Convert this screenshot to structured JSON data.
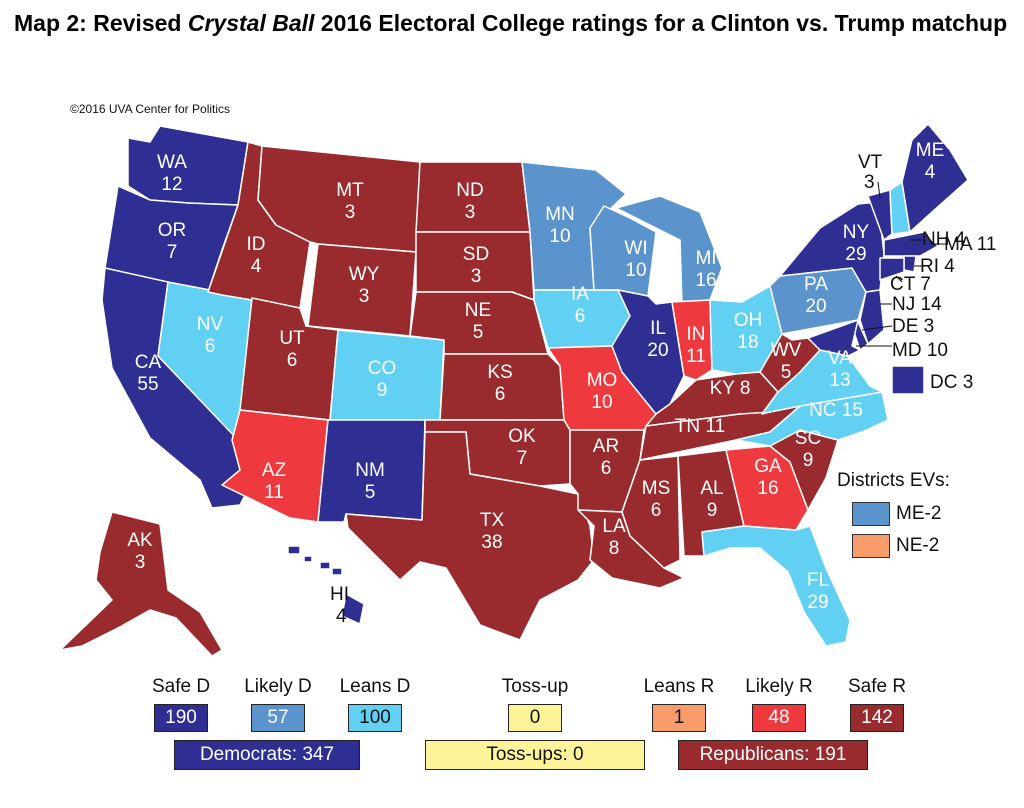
{
  "header": {
    "title_a": "Map 2: Revised ",
    "title_b": "Crystal Ball",
    "title_c": " 2016 Electoral College ratings for a Clinton vs. Trump matchup",
    "copyright": "©2016 UVA Center for Politics"
  },
  "colors": {
    "safe_d": "#2e2e93",
    "likely_d": "#5b93cc",
    "leans_d": "#61d0f2",
    "toss_up": "#fdf49a",
    "leans_r": "#f89c6c",
    "likely_r": "#ee3a3e",
    "safe_r": "#992b2f"
  },
  "states": [
    {
      "abbr": "WA",
      "ev": "12",
      "rating": "safe_d"
    },
    {
      "abbr": "OR",
      "ev": "7",
      "rating": "safe_d"
    },
    {
      "abbr": "CA",
      "ev": "55",
      "rating": "safe_d"
    },
    {
      "abbr": "NV",
      "ev": "6",
      "rating": "leans_d"
    },
    {
      "abbr": "ID",
      "ev": "4",
      "rating": "safe_r"
    },
    {
      "abbr": "MT",
      "ev": "3",
      "rating": "safe_r"
    },
    {
      "abbr": "WY",
      "ev": "3",
      "rating": "safe_r"
    },
    {
      "abbr": "UT",
      "ev": "6",
      "rating": "safe_r"
    },
    {
      "abbr": "CO",
      "ev": "9",
      "rating": "leans_d"
    },
    {
      "abbr": "AZ",
      "ev": "11",
      "rating": "likely_r"
    },
    {
      "abbr": "NM",
      "ev": "5",
      "rating": "safe_d"
    },
    {
      "abbr": "ND",
      "ev": "3",
      "rating": "safe_r"
    },
    {
      "abbr": "SD",
      "ev": "3",
      "rating": "safe_r"
    },
    {
      "abbr": "NE",
      "ev": "5",
      "rating": "safe_r"
    },
    {
      "abbr": "KS",
      "ev": "6",
      "rating": "safe_r"
    },
    {
      "abbr": "OK",
      "ev": "7",
      "rating": "safe_r"
    },
    {
      "abbr": "TX",
      "ev": "38",
      "rating": "safe_r"
    },
    {
      "abbr": "MN",
      "ev": "10",
      "rating": "likely_d"
    },
    {
      "abbr": "IA",
      "ev": "6",
      "rating": "leans_d"
    },
    {
      "abbr": "MO",
      "ev": "10",
      "rating": "likely_r"
    },
    {
      "abbr": "AR",
      "ev": "6",
      "rating": "safe_r"
    },
    {
      "abbr": "LA",
      "ev": "8",
      "rating": "safe_r"
    },
    {
      "abbr": "WI",
      "ev": "10",
      "rating": "likely_d"
    },
    {
      "abbr": "IL",
      "ev": "20",
      "rating": "safe_d"
    },
    {
      "abbr": "MI",
      "ev": "16",
      "rating": "likely_d"
    },
    {
      "abbr": "IN",
      "ev": "11",
      "rating": "likely_r"
    },
    {
      "abbr": "OH",
      "ev": "18",
      "rating": "leans_d"
    },
    {
      "abbr": "KY",
      "ev": "8",
      "rating": "safe_r"
    },
    {
      "abbr": "TN",
      "ev": "11",
      "rating": "safe_r"
    },
    {
      "abbr": "MS",
      "ev": "6",
      "rating": "safe_r"
    },
    {
      "abbr": "AL",
      "ev": "9",
      "rating": "safe_r"
    },
    {
      "abbr": "GA",
      "ev": "16",
      "rating": "likely_r"
    },
    {
      "abbr": "FL",
      "ev": "29",
      "rating": "leans_d"
    },
    {
      "abbr": "SC",
      "ev": "9",
      "rating": "safe_r"
    },
    {
      "abbr": "NC",
      "ev": "15",
      "rating": "leans_d"
    },
    {
      "abbr": "VA",
      "ev": "13",
      "rating": "leans_d"
    },
    {
      "abbr": "WV",
      "ev": "5",
      "rating": "safe_r"
    },
    {
      "abbr": "PA",
      "ev": "20",
      "rating": "likely_d"
    },
    {
      "abbr": "NY",
      "ev": "29",
      "rating": "safe_d"
    },
    {
      "abbr": "VT",
      "ev": "3",
      "rating": "safe_d"
    },
    {
      "abbr": "NH",
      "ev": "4",
      "rating": "leans_d"
    },
    {
      "abbr": "ME",
      "ev": "4",
      "rating": "safe_d"
    },
    {
      "abbr": "MA",
      "ev": "11",
      "rating": "safe_d"
    },
    {
      "abbr": "RI",
      "ev": "4",
      "rating": "safe_d"
    },
    {
      "abbr": "CT",
      "ev": "7",
      "rating": "safe_d"
    },
    {
      "abbr": "NJ",
      "ev": "14",
      "rating": "safe_d"
    },
    {
      "abbr": "DE",
      "ev": "3",
      "rating": "safe_d"
    },
    {
      "abbr": "MD",
      "ev": "10",
      "rating": "safe_d"
    },
    {
      "abbr": "DC",
      "ev": "3",
      "rating": "safe_d"
    },
    {
      "abbr": "AK",
      "ev": "3",
      "rating": "safe_r"
    },
    {
      "abbr": "HI",
      "ev": "4",
      "rating": "safe_d"
    }
  ],
  "districts": {
    "heading": "Districts EVs:",
    "items": [
      {
        "label": "ME-2",
        "rating": "likely_d"
      },
      {
        "label": "NE-2",
        "rating": "leans_r"
      }
    ]
  },
  "legend": {
    "categories": [
      {
        "key": "safe_d",
        "label": "Safe D",
        "count": "190"
      },
      {
        "key": "likely_d",
        "label": "Likely D",
        "count": "57"
      },
      {
        "key": "leans_d",
        "label": "Leans D",
        "count": "100"
      },
      {
        "key": "toss_up",
        "label": "Toss-up",
        "count": "0"
      },
      {
        "key": "leans_r",
        "label": "Leans R",
        "count": "1"
      },
      {
        "key": "likely_r",
        "label": "Likely R",
        "count": "48"
      },
      {
        "key": "safe_r",
        "label": "Safe R",
        "count": "142"
      }
    ],
    "totals": {
      "democrats": "Democrats: 347",
      "tossups": "Toss-ups: 0",
      "republicans": "Republicans: 191"
    }
  }
}
